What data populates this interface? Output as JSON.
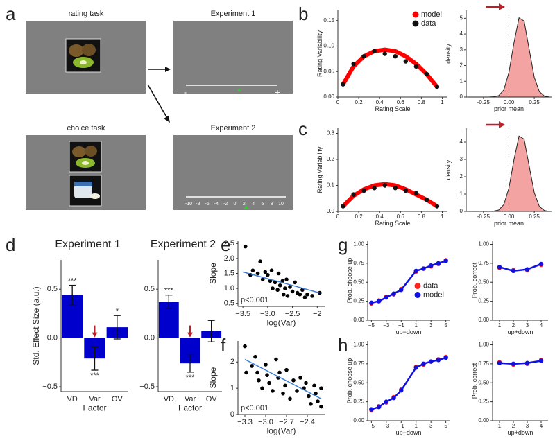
{
  "panel_labels": [
    "a",
    "b",
    "c",
    "d",
    "e",
    "f",
    "g",
    "h"
  ],
  "diagram": {
    "rating_task": "rating task",
    "choice_task": "choice task",
    "experiment_1": "Experiment 1",
    "experiment_2": "Experiment 2",
    "scale_min": "-",
    "scale_max": "+",
    "scale_ticks": [
      -10,
      -8,
      -6,
      -4,
      -2,
      0,
      2,
      4,
      6,
      8,
      10
    ]
  },
  "chart_data": [
    {
      "type": "line",
      "xlabel": "Rating Scale",
      "ylabel": "Rating Variability",
      "legend": "upper right",
      "x": [
        0.05,
        0.15,
        0.25,
        0.35,
        0.45,
        0.55,
        0.65,
        0.75,
        0.85,
        0.95
      ],
      "xlim": [
        0,
        1.05
      ],
      "ylim": [
        0,
        0.17
      ],
      "xticks": [
        0,
        0.2,
        0.4,
        0.6,
        0.8,
        1
      ],
      "yticks": [
        {
          "value": 0,
          "label": "0.00"
        },
        {
          "value": 0.05,
          "label": "0.05"
        },
        {
          "value": 0.1,
          "label": "0.10"
        },
        {
          "value": 0.15,
          "label": "0.15"
        }
      ],
      "series": [
        {
          "name": "model",
          "kind": "line",
          "color": "#ff0000",
          "values": [
            0.025,
            0.06,
            0.08,
            0.09,
            0.093,
            0.09,
            0.08,
            0.065,
            0.045,
            0.02
          ]
        },
        {
          "name": "data",
          "kind": "markers",
          "color": "#111111",
          "values": [
            0.025,
            0.065,
            0.08,
            0.09,
            0.085,
            0.08,
            0.07,
            0.06,
            0.045,
            0.02
          ]
        }
      ]
    },
    {
      "type": "area",
      "xlabel": "prior mean",
      "ylabel": "density",
      "color": "#f4a3a3",
      "x": [
        -0.4,
        -0.35,
        -0.3,
        -0.25,
        -0.2,
        -0.15,
        -0.1,
        -0.05,
        0,
        0.05,
        0.1,
        0.15,
        0.2,
        0.25,
        0.3,
        0.35,
        0.4
      ],
      "values": [
        0,
        0,
        0,
        0,
        0,
        0.02,
        0.09,
        0.45,
        1.55,
        3.44,
        5.03,
        4.82,
        3.03,
        1.25,
        0.34,
        0.06,
        0
      ],
      "xlim": [
        -0.42,
        0.42
      ],
      "ylim": [
        0,
        5.5
      ],
      "xticks": [
        {
          "value": -0.25,
          "label": "-0.25"
        },
        {
          "value": 0,
          "label": "0.00"
        },
        0.25
      ],
      "yticks": [
        0,
        1,
        2,
        3,
        4,
        5
      ]
    },
    {
      "type": "line",
      "xlabel": "Rating Scale",
      "ylabel": "Rating Variability",
      "x": [
        0.05,
        0.15,
        0.25,
        0.35,
        0.45,
        0.55,
        0.65,
        0.75,
        0.85,
        0.95
      ],
      "xlim": [
        0,
        1.05
      ],
      "ylim": [
        0,
        0.32
      ],
      "xticks": [
        0,
        0.2,
        0.4,
        0.6,
        0.8,
        1
      ],
      "yticks": [
        {
          "value": 0,
          "label": "0.0"
        },
        0.1,
        0.2,
        0.3
      ],
      "series": [
        {
          "kind": "line",
          "color": "#ff0000",
          "values": [
            0.02,
            0.06,
            0.085,
            0.1,
            0.105,
            0.1,
            0.085,
            0.065,
            0.045,
            0.02
          ]
        },
        {
          "kind": "markers",
          "color": "#111111",
          "values": [
            0.02,
            0.065,
            0.08,
            0.09,
            0.1,
            0.09,
            0.08,
            0.07,
            0.045,
            0.02
          ]
        }
      ]
    },
    {
      "type": "area",
      "xlabel": "prior mean",
      "ylabel": "density",
      "color": "#f4a3a3",
      "x": [
        -0.4,
        -0.35,
        -0.3,
        -0.25,
        -0.2,
        -0.15,
        -0.1,
        -0.05,
        0,
        0.05,
        0.1,
        0.15,
        0.2,
        0.25,
        0.3,
        0.35,
        0.4
      ],
      "values": [
        0,
        0,
        0,
        0,
        0,
        0.02,
        0.08,
        0.39,
        1.34,
        2.98,
        4.35,
        4.17,
        2.62,
        1.08,
        0.29,
        0.05,
        0
      ],
      "xlim": [
        -0.42,
        0.42
      ],
      "ylim": [
        0,
        4.8
      ],
      "xticks": [
        {
          "value": -0.25,
          "label": "-0.25"
        },
        {
          "value": 0,
          "label": "0.00"
        },
        0.25
      ],
      "yticks": [
        0,
        1,
        2,
        3,
        4
      ]
    },
    {
      "type": "bar",
      "title": "Experiment 1",
      "xlabel": "Factor",
      "ylabel": "Std. Effect Size (a.u.)",
      "color": "#0000cc",
      "categories": [
        "VD",
        "Var",
        "OV"
      ],
      "values": [
        0.44,
        -0.21,
        0.11
      ],
      "errors": [
        0.1,
        0.12,
        0.12
      ],
      "significance": [
        "***",
        "***",
        "*"
      ],
      "ylim": [
        -0.55,
        0.8
      ],
      "yticks": [
        {
          "value": -0.5,
          "label": "−0.5"
        },
        {
          "value": 0,
          "label": "0.0"
        },
        0.5
      ]
    },
    {
      "type": "bar",
      "title": "Experiment 2",
      "xlabel": "Factor",
      "color": "#0000cc",
      "categories": [
        "VD",
        "Var",
        "OV"
      ],
      "values": [
        0.37,
        -0.26,
        0.07
      ],
      "errors": [
        0.07,
        0.09,
        0.11
      ],
      "significance": [
        "***",
        "***",
        null
      ],
      "ylim": [
        -0.55,
        0.8
      ],
      "yticks": [
        {
          "value": -0.5,
          "label": "−0.5"
        },
        {
          "value": 0,
          "label": "0.0"
        },
        0.5
      ]
    },
    {
      "type": "scatter",
      "xlabel": "log(Var)",
      "ylabel": "Slope",
      "annotation": "p<0.001",
      "color": "#000000",
      "x": [
        -3.45,
        -3.3,
        -3.2,
        -3.15,
        -3.1,
        -3.05,
        -3.0,
        -2.95,
        -2.92,
        -2.9,
        -2.85,
        -2.8,
        -2.78,
        -2.75,
        -2.7,
        -2.68,
        -2.65,
        -2.6,
        -2.55,
        -2.5,
        -2.45,
        -2.4,
        -2.35,
        -2.3,
        -2.25,
        -2.2,
        -2.1,
        -1.95,
        -3.35,
        -2.62
      ],
      "values": [
        2.4,
        1.6,
        1.5,
        1.9,
        1.3,
        1.55,
        1.45,
        1.25,
        1.6,
        1.0,
        1.2,
        0.95,
        1.5,
        1.1,
        1.25,
        0.8,
        1.0,
        0.75,
        1.05,
        0.9,
        1.2,
        0.85,
        0.8,
        0.95,
        0.7,
        0.8,
        0.75,
        0.85,
        1.45,
        1.3
      ],
      "fit": {
        "x": [
          -3.5,
          -1.95
        ],
        "y": [
          1.55,
          0.85
        ],
        "color": "#3a7bd5"
      },
      "xlim": [
        -3.6,
        -1.85
      ],
      "ylim": [
        0.4,
        2.6
      ],
      "xticks": [
        {
          "value": -3.5,
          "label": "−3.5"
        },
        {
          "value": -3,
          "label": "−3.0"
        },
        {
          "value": -2.5,
          "label": "−2.5"
        },
        {
          "value": -2,
          "label": "−2"
        }
      ],
      "yticks": [
        0.5,
        {
          "value": 1,
          "label": "1.0"
        },
        1.5,
        {
          "value": 2,
          "label": "2.0"
        },
        2.5
      ]
    },
    {
      "type": "scatter",
      "xlabel": "log(Var)",
      "ylabel": "Slope",
      "annotation": "p<0.001",
      "color": "#000000",
      "x": [
        -3.3,
        -3.28,
        -3.2,
        -3.15,
        -3.1,
        -3.05,
        -3.0,
        -2.98,
        -2.95,
        -2.9,
        -2.85,
        -2.82,
        -2.8,
        -2.75,
        -2.72,
        -2.7,
        -2.65,
        -2.6,
        -2.55,
        -2.5,
        -2.45,
        -2.42,
        -2.38,
        -2.35,
        -2.3,
        -2.25,
        -2.2,
        -2.2,
        -2.28,
        -3.12
      ],
      "values": [
        2.6,
        1.6,
        1.85,
        2.2,
        1.3,
        1.0,
        1.9,
        1.5,
        1.2,
        0.9,
        2.1,
        1.4,
        1.6,
        0.8,
        1.1,
        1.7,
        0.6,
        1.3,
        0.9,
        1.4,
        1.0,
        1.2,
        0.7,
        0.4,
        1.1,
        0.5,
        1.0,
        0.3,
        0.8,
        1.6
      ],
      "fit": {
        "x": [
          -3.3,
          -2.2
        ],
        "y": [
          2.1,
          0.6
        ],
        "color": "#3a7bd5"
      },
      "xlim": [
        -3.4,
        -2.15
      ],
      "ylim": [
        0,
        2.8
      ],
      "xticks": [
        {
          "value": -3.3,
          "label": "−3.3"
        },
        {
          "value": -3,
          "label": "−3.0"
        },
        {
          "value": -2.7,
          "label": "−2.7"
        },
        {
          "value": -2.4,
          "label": "−2.4"
        }
      ],
      "yticks": [
        0,
        1,
        2
      ]
    },
    {
      "type": "line",
      "xlabel": "up−down",
      "ylabel": "Prob. choose up",
      "legend": "center right",
      "x": [
        -5,
        -4,
        -3,
        -2,
        -1,
        1,
        2,
        3,
        4,
        5
      ],
      "xlim": [
        -5.5,
        5.5
      ],
      "ylim": [
        0,
        1.05
      ],
      "xticks": [
        {
          "value": -5,
          "label": "−5"
        },
        {
          "value": -3,
          "label": "−3"
        },
        {
          "value": -1,
          "label": "−1"
        },
        1,
        3,
        5
      ],
      "yticks": [
        {
          "value": 0,
          "label": "0.00"
        },
        0.25,
        {
          "value": 0.5,
          "label": "0.50"
        },
        0.75,
        {
          "value": 1,
          "label": "1.00"
        }
      ],
      "series": [
        {
          "name": "data",
          "kind": "markers",
          "color": "#ff2020",
          "values": [
            0.22,
            0.26,
            0.31,
            0.34,
            0.41,
            0.64,
            0.68,
            0.71,
            0.74,
            0.79
          ]
        },
        {
          "name": "model",
          "kind": "line+markers",
          "color": "#1010e0",
          "values": [
            0.23,
            0.25,
            0.3,
            0.35,
            0.4,
            0.65,
            0.68,
            0.72,
            0.75,
            0.78
          ]
        }
      ]
    },
    {
      "type": "line",
      "xlabel": "up+down",
      "ylabel": "Prob. correct",
      "x": [
        1,
        2,
        3,
        4
      ],
      "xlim": [
        0.5,
        4.5
      ],
      "ylim": [
        0,
        1.05
      ],
      "xticks": [
        1,
        2,
        3,
        4
      ],
      "yticks": [
        {
          "value": 0,
          "label": "0.00"
        },
        0.25,
        {
          "value": 0.5,
          "label": "0.50"
        },
        0.75,
        {
          "value": 1,
          "label": "1.00"
        }
      ],
      "series": [
        {
          "kind": "markers",
          "color": "#ff2020",
          "values": [
            0.69,
            0.66,
            0.66,
            0.73
          ]
        },
        {
          "kind": "line+markers",
          "color": "#1010e0",
          "values": [
            0.7,
            0.65,
            0.67,
            0.74
          ]
        }
      ]
    },
    {
      "type": "line",
      "xlabel": "up−down",
      "ylabel": "Prob. choose up",
      "x": [
        -5,
        -4,
        -3,
        -2,
        -1,
        1,
        2,
        3,
        4,
        5
      ],
      "xlim": [
        -5.5,
        5.5
      ],
      "ylim": [
        0,
        1.05
      ],
      "xticks": [
        {
          "value": -5,
          "label": "−5"
        },
        {
          "value": -3,
          "label": "−3"
        },
        {
          "value": -1,
          "label": "−1"
        },
        1,
        3,
        5
      ],
      "yticks": [
        {
          "value": 0,
          "label": "0.00"
        },
        0.25,
        {
          "value": 0.5,
          "label": "0.50"
        },
        0.75,
        {
          "value": 1,
          "label": "1.00"
        }
      ],
      "series": [
        {
          "kind": "markers",
          "color": "#ff2020",
          "values": [
            0.14,
            0.19,
            0.24,
            0.31,
            0.41,
            0.71,
            0.74,
            0.78,
            0.81,
            0.84
          ]
        },
        {
          "kind": "line+markers",
          "color": "#1010e0",
          "values": [
            0.15,
            0.18,
            0.25,
            0.3,
            0.4,
            0.7,
            0.75,
            0.78,
            0.8,
            0.83
          ]
        }
      ]
    },
    {
      "type": "line",
      "xlabel": "up+down",
      "ylabel": "Prob. correct",
      "x": [
        1,
        2,
        3,
        4
      ],
      "xlim": [
        0.5,
        4.5
      ],
      "ylim": [
        0,
        1.05
      ],
      "xticks": [
        1,
        2,
        3,
        4
      ],
      "yticks": [
        {
          "value": 0,
          "label": "0.00"
        },
        0.25,
        {
          "value": 0.5,
          "label": "0.50"
        },
        0.75,
        {
          "value": 1,
          "label": "1.00"
        }
      ],
      "series": [
        {
          "kind": "markers",
          "color": "#ff2020",
          "values": [
            0.77,
            0.74,
            0.75,
            0.8
          ]
        },
        {
          "kind": "line+markers",
          "color": "#1010e0",
          "values": [
            0.76,
            0.75,
            0.76,
            0.79
          ]
        }
      ]
    }
  ]
}
